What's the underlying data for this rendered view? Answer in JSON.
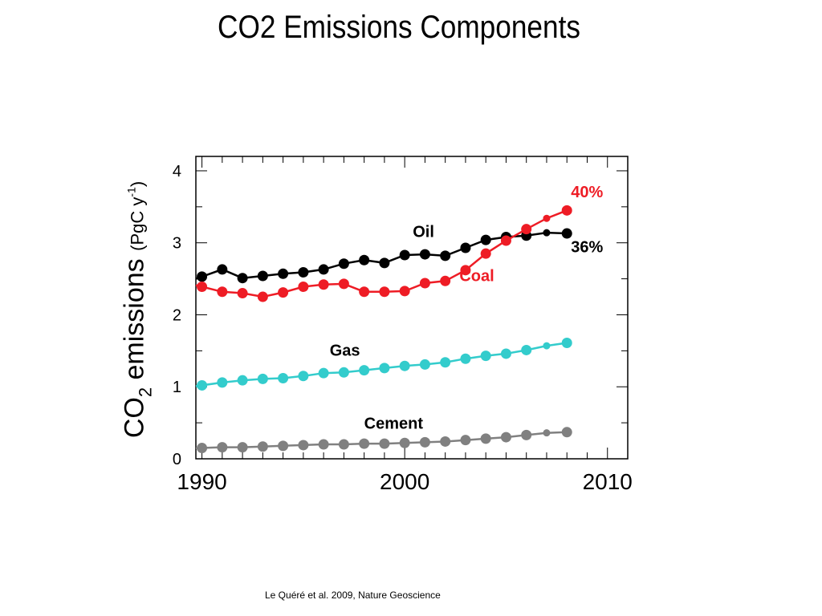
{
  "title": "CO2 Emissions Components",
  "ylabel": {
    "main": "CO",
    "sub": "2",
    "rest": " emissions ",
    "unit_open": "(PgC y",
    "unit_sup": "-1",
    "unit_close": ")"
  },
  "source": "Le Quéré et al. 2009, Nature Geoscience",
  "chart_data": {
    "type": "line",
    "title": "CO2 Emissions Components",
    "xlabel": "",
    "ylabel": "CO2 emissions (PgC y-1)",
    "xlim": [
      1989.7,
      2011
    ],
    "ylim": [
      0,
      4.2
    ],
    "xticks": [
      1990,
      2000,
      2010
    ],
    "yticks": [
      0,
      1,
      2,
      3,
      4
    ],
    "grid": false,
    "x": [
      1990,
      1991,
      1992,
      1993,
      1994,
      1995,
      1996,
      1997,
      1998,
      1999,
      2000,
      2001,
      2002,
      2003,
      2004,
      2005,
      2006,
      2007,
      2008
    ],
    "series": [
      {
        "name": "Oil",
        "color": "#000000",
        "values": [
          2.53,
          2.63,
          2.51,
          2.54,
          2.57,
          2.59,
          2.63,
          2.71,
          2.76,
          2.72,
          2.83,
          2.84,
          2.82,
          2.93,
          3.04,
          3.08,
          3.1,
          3.14,
          3.13
        ]
      },
      {
        "name": "Coal",
        "color": "#ee1c25",
        "values": [
          2.39,
          2.32,
          2.3,
          2.25,
          2.31,
          2.39,
          2.42,
          2.43,
          2.32,
          2.32,
          2.33,
          2.44,
          2.47,
          2.62,
          2.85,
          3.03,
          3.19,
          3.34,
          3.45
        ]
      },
      {
        "name": "Gas",
        "color": "#33cccc",
        "values": [
          1.02,
          1.06,
          1.09,
          1.11,
          1.12,
          1.15,
          1.19,
          1.2,
          1.23,
          1.26,
          1.29,
          1.31,
          1.34,
          1.39,
          1.43,
          1.46,
          1.51,
          1.57,
          1.61
        ]
      },
      {
        "name": "Cement",
        "color": "#808080",
        "values": [
          0.15,
          0.16,
          0.16,
          0.17,
          0.18,
          0.19,
          0.2,
          0.2,
          0.21,
          0.21,
          0.22,
          0.23,
          0.24,
          0.26,
          0.28,
          0.3,
          0.33,
          0.36,
          0.37
        ]
      }
    ],
    "annotations": [
      {
        "text": "Oil",
        "series": "Oil"
      },
      {
        "text": "Coal",
        "series": "Coal"
      },
      {
        "text": "Gas",
        "series": "Gas"
      },
      {
        "text": "Cement",
        "series": "Cement"
      },
      {
        "text": "40%",
        "series": "Coal"
      },
      {
        "text": "36%",
        "series": "Oil"
      }
    ]
  }
}
